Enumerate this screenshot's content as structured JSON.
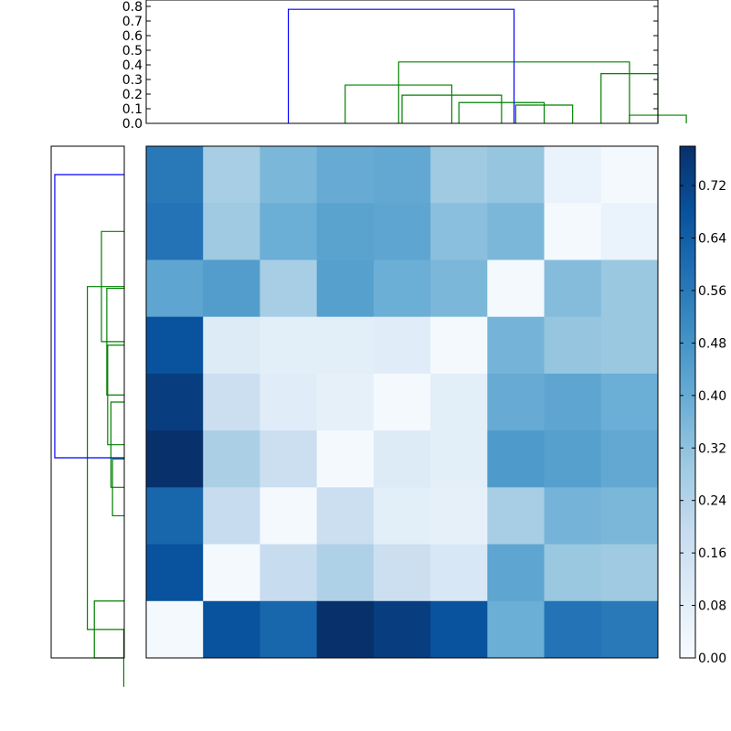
{
  "chart_data": [
    {
      "type": "dendrogram",
      "orientation": "top",
      "ylim": [
        0.0,
        0.8
      ],
      "y_ticks": [
        "0.0",
        "0.1",
        "0.2",
        "0.3",
        "0.4",
        "0.5",
        "0.6",
        "0.7",
        "0.8"
      ],
      "leaf_count": 9,
      "links": [
        {
          "left": 8.5,
          "right": 9.5,
          "height": 0.056,
          "color": "#008000"
        },
        {
          "left": 6.5,
          "right": 7.5,
          "height": 0.125,
          "color": "#008000"
        },
        {
          "left": 5.5,
          "right": 7.0,
          "height": 0.142,
          "color": "#008000"
        },
        {
          "left": 4.5,
          "right": 6.25,
          "height": 0.193,
          "color": "#008000"
        },
        {
          "left": 3.5,
          "right": 5.375,
          "height": 0.262,
          "color": "#008000"
        },
        {
          "left": 8.0,
          "right": 9.0,
          "height": 0.34,
          "color": "#008000"
        },
        {
          "left": 4.44,
          "right": 8.5,
          "height": 0.42,
          "color": "#008000"
        },
        {
          "left": 2.5,
          "right": 6.47,
          "height": 0.78,
          "color": "#0000ff"
        }
      ]
    },
    {
      "type": "dendrogram",
      "orientation": "left",
      "leaf_count": 9,
      "links": [
        {
          "left": 8.5,
          "right": 9.5,
          "height": 0.007,
          "color": "#008000"
        },
        {
          "left": 8.0,
          "right": 9.0,
          "height": 0.42,
          "color": "#008000"
        },
        {
          "left": 5.5,
          "right": 6.5,
          "height": 0.165,
          "color": "#008000"
        },
        {
          "left": 4.5,
          "right": 6.0,
          "height": 0.187,
          "color": "#008000"
        },
        {
          "left": 3.5,
          "right": 5.25,
          "height": 0.233,
          "color": "#008000"
        },
        {
          "left": 2.5,
          "right": 4.375,
          "height": 0.245,
          "color": "#008000"
        },
        {
          "left": 1.5,
          "right": 3.4375,
          "height": 0.32,
          "color": "#008000"
        },
        {
          "left": 2.47,
          "right": 8.5,
          "height": 0.518,
          "color": "#008000"
        },
        {
          "left": 0.5,
          "right": 5.48,
          "height": 0.975,
          "color": "#0000ff"
        }
      ]
    },
    {
      "type": "heatmap",
      "cmap": "Blues",
      "vmin": 0.0,
      "vmax": 0.78,
      "values": [
        [
          0.56,
          0.27,
          0.36,
          0.4,
          0.41,
          0.29,
          0.31,
          0.05,
          0.01
        ],
        [
          0.58,
          0.29,
          0.39,
          0.43,
          0.42,
          0.33,
          0.36,
          0.01,
          0.05
        ],
        [
          0.42,
          0.45,
          0.27,
          0.44,
          0.39,
          0.36,
          0.01,
          0.34,
          0.3
        ],
        [
          0.68,
          0.1,
          0.08,
          0.08,
          0.09,
          0.01,
          0.37,
          0.31,
          0.3
        ],
        [
          0.74,
          0.17,
          0.09,
          0.07,
          0.01,
          0.08,
          0.4,
          0.42,
          0.39
        ],
        [
          0.78,
          0.26,
          0.17,
          0.01,
          0.1,
          0.08,
          0.46,
          0.44,
          0.41
        ],
        [
          0.62,
          0.19,
          0.01,
          0.17,
          0.08,
          0.07,
          0.27,
          0.37,
          0.36
        ],
        [
          0.68,
          0.01,
          0.19,
          0.25,
          0.17,
          0.12,
          0.42,
          0.3,
          0.29
        ],
        [
          0.01,
          0.68,
          0.62,
          0.78,
          0.74,
          0.68,
          0.39,
          0.58,
          0.56
        ]
      ]
    },
    {
      "type": "colorbar",
      "vmin": 0.0,
      "vmax": 0.78,
      "ticks": [
        "0.00",
        "0.08",
        "0.16",
        "0.24",
        "0.32",
        "0.40",
        "0.48",
        "0.56",
        "0.64",
        "0.72"
      ]
    }
  ]
}
